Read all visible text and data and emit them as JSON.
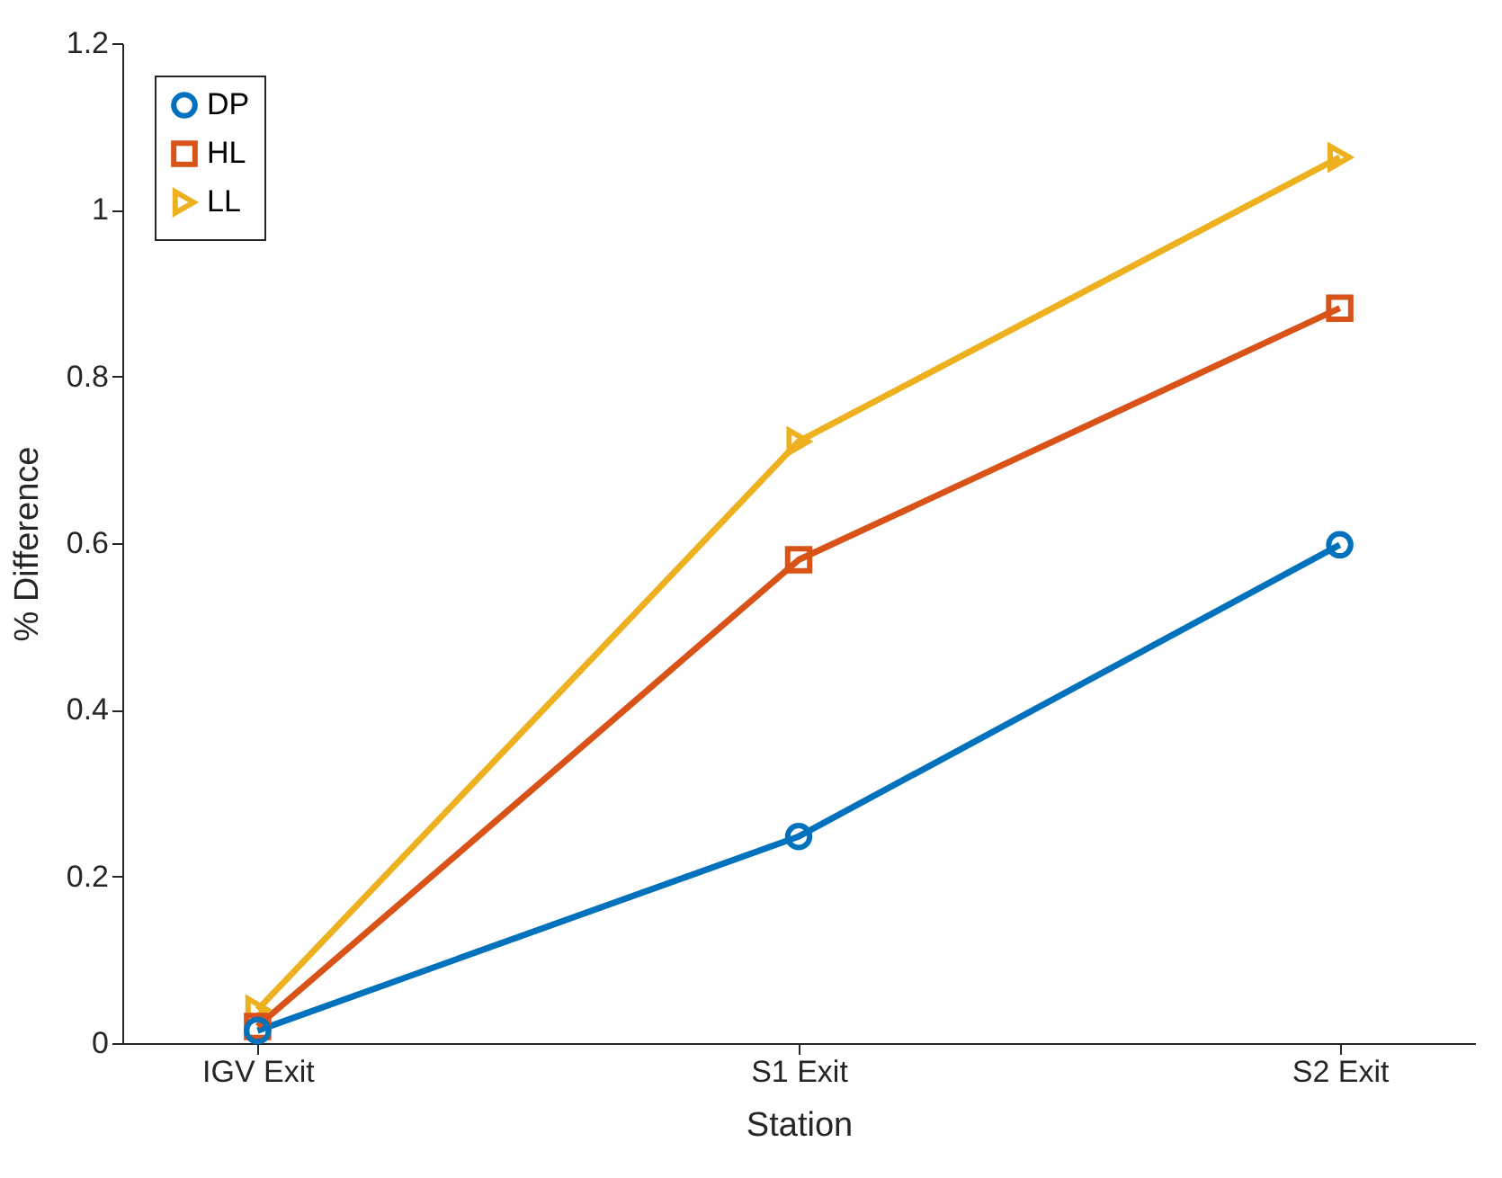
{
  "chart_data": {
    "type": "line",
    "xlabel": "Station",
    "ylabel": "% Difference",
    "categories": [
      "IGV Exit",
      "S1 Exit",
      "S2 Exit"
    ],
    "series": [
      {
        "name": "DP",
        "color": "#0072bd",
        "marker": "circle",
        "values": [
          0.015,
          0.248,
          0.598
        ]
      },
      {
        "name": "HL",
        "color": "#d95319",
        "marker": "square",
        "values": [
          0.02,
          0.58,
          0.882
        ]
      },
      {
        "name": "LL",
        "color": "#edb120",
        "marker": "triangle",
        "values": [
          0.04,
          0.722,
          1.063
        ]
      }
    ],
    "ylim": [
      0,
      1.2
    ],
    "yticks": [
      0,
      0.2,
      0.4,
      0.6,
      0.8,
      1,
      1.2
    ],
    "grid": false,
    "legend": "top left",
    "line_style": "solid"
  }
}
